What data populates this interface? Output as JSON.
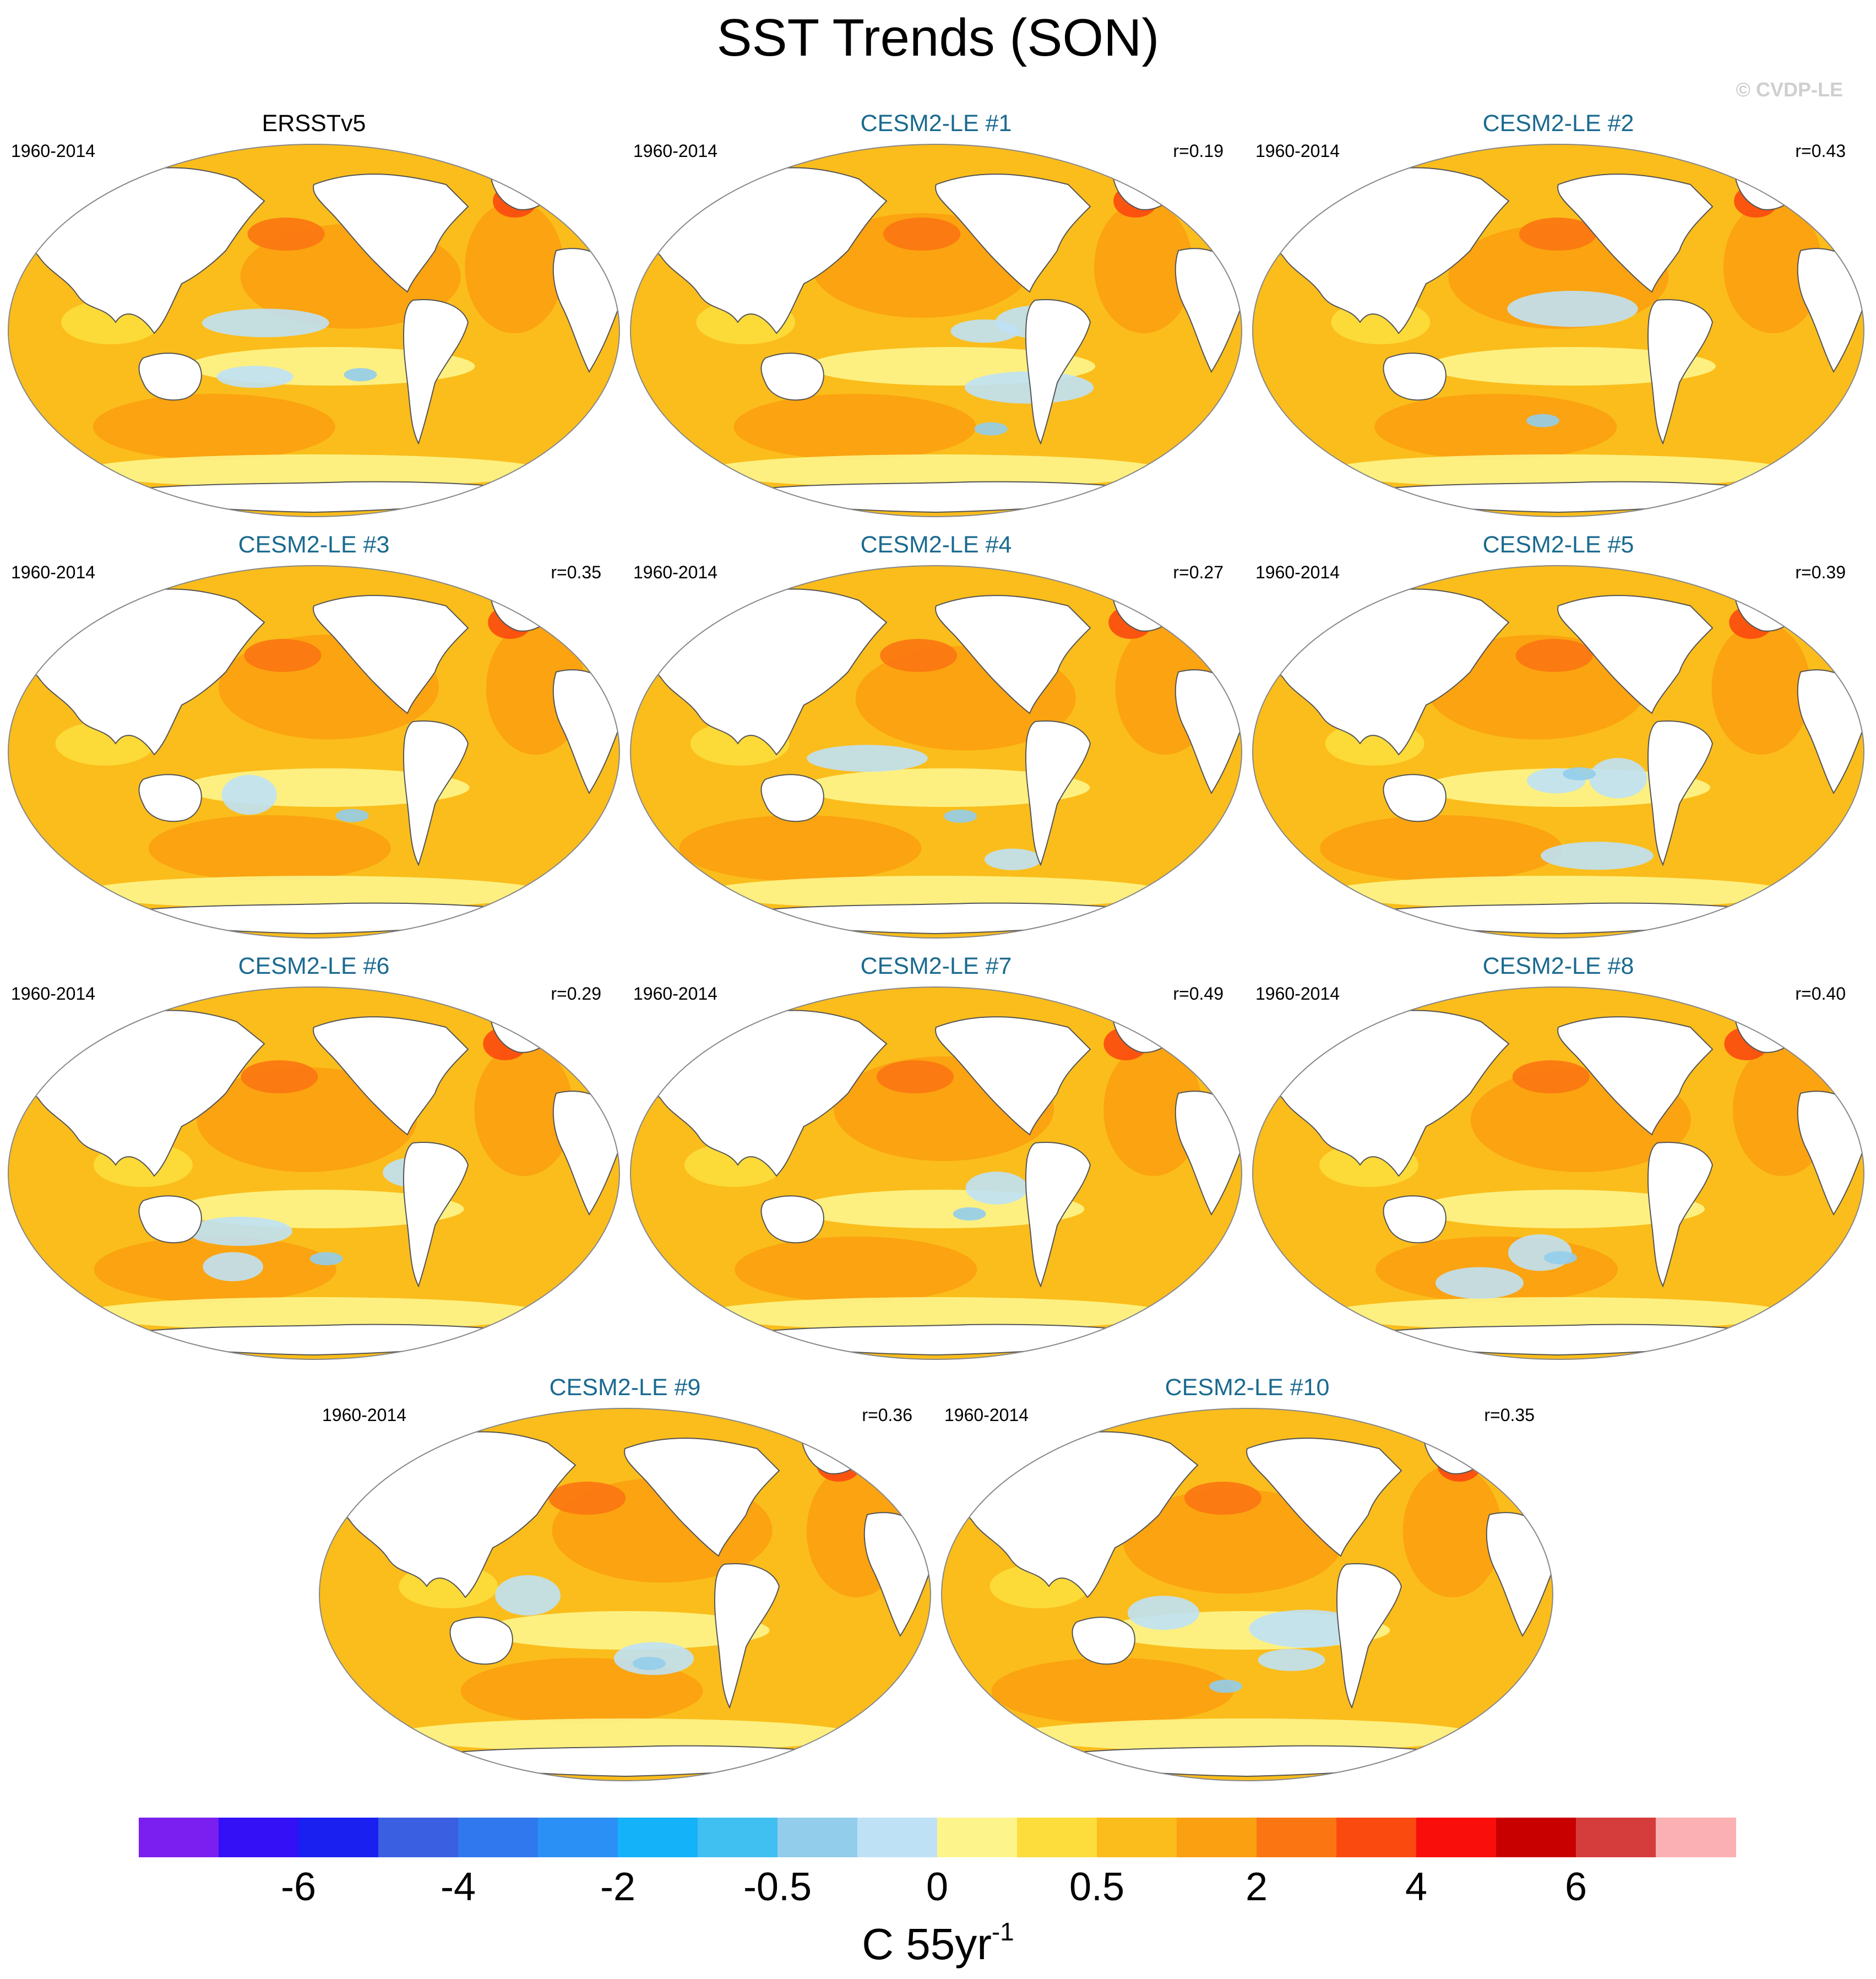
{
  "title": "SST Trends (SON)",
  "credit": "© CVDP-LE",
  "chart_data": {
    "type": "map",
    "variable": "Sea surface temperature trend",
    "season": "SON",
    "projection": "Robinson (global, Pacific-centered)",
    "units_text": "C 55yr",
    "units_exp": "-1",
    "panels": [
      {
        "title": "ERSSTv5",
        "kind": "obs",
        "period": "1960-2014",
        "r": null,
        "pattern": "obs"
      },
      {
        "title": "CESM2-LE #1",
        "kind": "model",
        "period": "1960-2014",
        "r": "r=0.19",
        "pattern": 1
      },
      {
        "title": "CESM2-LE #2",
        "kind": "model",
        "period": "1960-2014",
        "r": "r=0.43",
        "pattern": 2
      },
      {
        "title": "CESM2-LE #3",
        "kind": "model",
        "period": "1960-2014",
        "r": "r=0.35",
        "pattern": 3
      },
      {
        "title": "CESM2-LE #4",
        "kind": "model",
        "period": "1960-2014",
        "r": "r=0.27",
        "pattern": 4
      },
      {
        "title": "CESM2-LE #5",
        "kind": "model",
        "period": "1960-2014",
        "r": "r=0.39",
        "pattern": 5
      },
      {
        "title": "CESM2-LE #6",
        "kind": "model",
        "period": "1960-2014",
        "r": "r=0.29",
        "pattern": 6
      },
      {
        "title": "CESM2-LE #7",
        "kind": "model",
        "period": "1960-2014",
        "r": "r=0.49",
        "pattern": 7
      },
      {
        "title": "CESM2-LE #8",
        "kind": "model",
        "period": "1960-2014",
        "r": "r=0.40",
        "pattern": 8
      },
      {
        "title": "CESM2-LE #9",
        "kind": "model",
        "period": "1960-2014",
        "r": "r=0.36",
        "pattern": 9
      },
      {
        "title": "CESM2-LE #10",
        "kind": "model",
        "period": "1960-2014",
        "r": "r=0.35",
        "pattern": 10
      }
    ],
    "colorbar": {
      "colors": [
        "#7b1ff0",
        "#3310f5",
        "#1a20f0",
        "#3a5fe0",
        "#2f78ee",
        "#2b90f5",
        "#14b2f8",
        "#40c0f0",
        "#92cdec",
        "#bfe1f5",
        "#fdf58c",
        "#fcdd3c",
        "#fbbd1b",
        "#fba010",
        "#fb7612",
        "#fb4a10",
        "#f90e0b",
        "#c90000",
        "#d53c3c",
        "#fbb0b3"
      ],
      "tick_labels": [
        "-6",
        "-4",
        "-2",
        "-0.5",
        "0",
        "0.5",
        "2",
        "4",
        "6"
      ],
      "tick_boundaries": [
        2,
        4,
        6,
        8,
        10,
        12,
        14,
        16,
        18
      ]
    }
  }
}
